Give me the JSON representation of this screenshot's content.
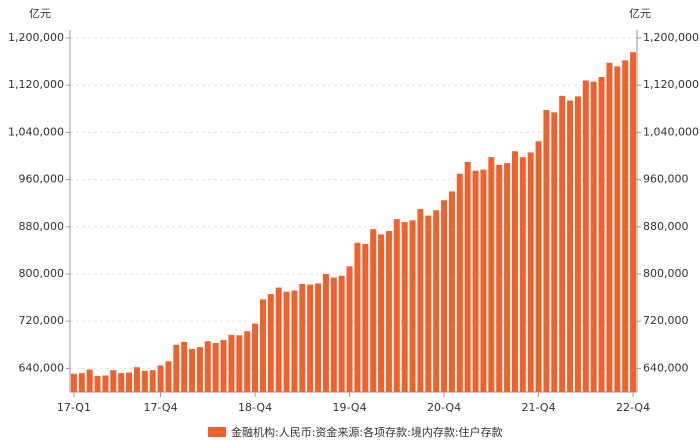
{
  "chart_data": {
    "type": "bar",
    "unit_left": "亿元",
    "unit_right": "亿元",
    "categories": [
      "17-Q1",
      null,
      null,
      null,
      null,
      null,
      null,
      null,
      null,
      null,
      null,
      "17-Q4",
      null,
      null,
      null,
      null,
      null,
      null,
      null,
      null,
      null,
      null,
      null,
      "18-Q4",
      null,
      null,
      null,
      null,
      null,
      null,
      null,
      null,
      null,
      null,
      null,
      "19-Q4",
      null,
      null,
      null,
      null,
      null,
      null,
      null,
      null,
      null,
      null,
      null,
      "20-Q4",
      null,
      null,
      null,
      null,
      null,
      null,
      null,
      null,
      null,
      null,
      null,
      "21-Q4",
      null,
      null,
      null,
      null,
      null,
      null,
      null,
      null,
      null,
      null,
      null,
      "22-Q4"
    ],
    "series": [
      {
        "name": "金融机构:人民币:资金来源:各项存款:境内存款:住户存款",
        "color": "#f0622d",
        "values": [
          631000,
          632000,
          638000,
          627000,
          628000,
          637000,
          632000,
          633000,
          642000,
          636000,
          637000,
          645000,
          652000,
          680000,
          685000,
          673000,
          676000,
          686000,
          683000,
          688000,
          697000,
          696000,
          703000,
          716000,
          757000,
          766000,
          777000,
          770000,
          772000,
          783000,
          782000,
          784000,
          800000,
          794000,
          797000,
          813000,
          853000,
          851000,
          876000,
          867000,
          873000,
          893000,
          888000,
          891000,
          910000,
          899000,
          908000,
          925000,
          940000,
          970000,
          990000,
          975000,
          977000,
          998000,
          985000,
          988000,
          1008000,
          998000,
          1006000,
          1025000,
          1078000,
          1074000,
          1102000,
          1094000,
          1101000,
          1128000,
          1126000,
          1134000,
          1158000,
          1152000,
          1162000,
          1176000
        ]
      }
    ],
    "ylim": [
      600000,
      1200000
    ],
    "yticks": [
      {
        "value": 640000,
        "label": "640,000"
      },
      {
        "value": 720000,
        "label": "720,000"
      },
      {
        "value": 800000,
        "label": "800,000"
      },
      {
        "value": 880000,
        "label": "880,000"
      },
      {
        "value": 960000,
        "label": "960,000"
      },
      {
        "value": 1040000,
        "label": "1,040,000"
      },
      {
        "value": 1120000,
        "label": "1,120,000"
      },
      {
        "value": 1200000,
        "label": "1,200,000"
      }
    ],
    "grid": true
  }
}
